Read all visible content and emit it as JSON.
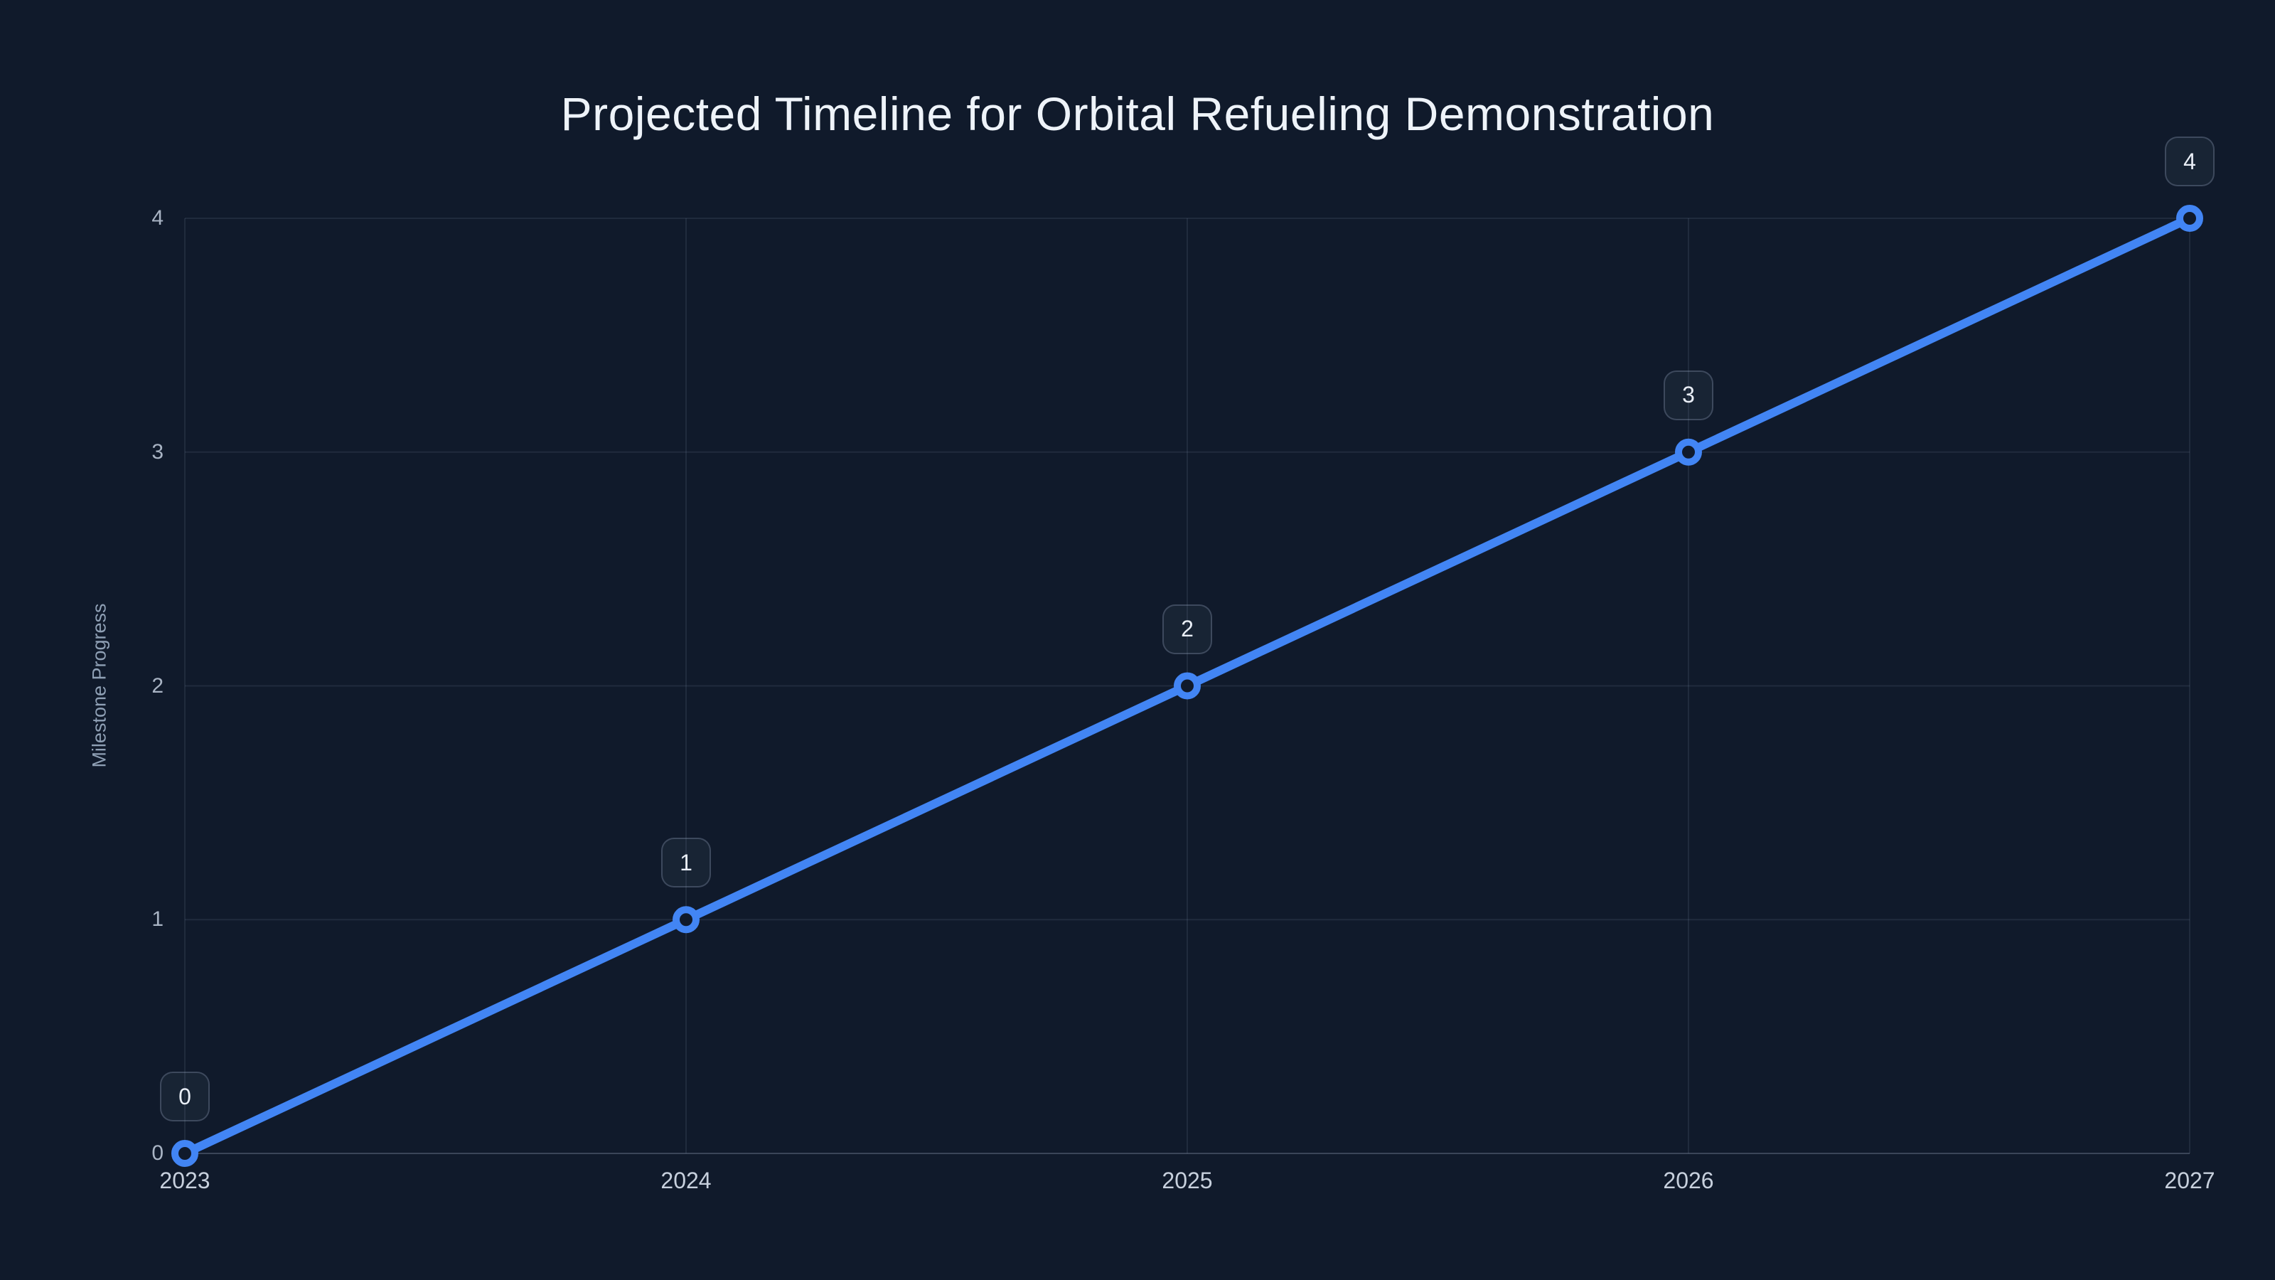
{
  "chart_data": {
    "type": "line",
    "title": "Projected Timeline for Orbital Refueling Demonstration",
    "xlabel": "",
    "ylabel": "Milestone Progress",
    "x": [
      2023,
      2024,
      2025,
      2026,
      2027
    ],
    "series": [
      {
        "values": [
          0,
          1,
          2,
          3,
          4
        ]
      }
    ],
    "point_labels": [
      "0",
      "1",
      "2",
      "3",
      "4"
    ],
    "x_tick_labels": [
      "2023",
      "2024",
      "2025",
      "2026",
      "2027"
    ],
    "y_tick_labels": [
      "0",
      "1",
      "2",
      "3",
      "4"
    ],
    "y_tick_values": [
      0,
      1,
      2,
      3,
      4
    ],
    "xlim": [
      2023,
      2027
    ],
    "ylim": [
      0,
      4
    ],
    "grid": true,
    "legend_visible": false,
    "colors": {
      "background": "#101a2b",
      "line": "#4285f4",
      "marker_ring": "#4285f4",
      "marker_fill": "#101a2b",
      "gridline": "rgba(148,163,184,0.13)",
      "axis_line": "rgba(148,163,184,0.32)",
      "title_text": "#eef3f9",
      "x_tick_text": "#c7d0dd",
      "y_tick_text": "#a9b4c4",
      "axis_title_text": "#8fa0b5",
      "label_box_bg": "rgba(148,163,184,0.07)",
      "label_box_border": "rgba(148,163,184,0.30)",
      "label_box_text": "#e9eef6"
    }
  }
}
